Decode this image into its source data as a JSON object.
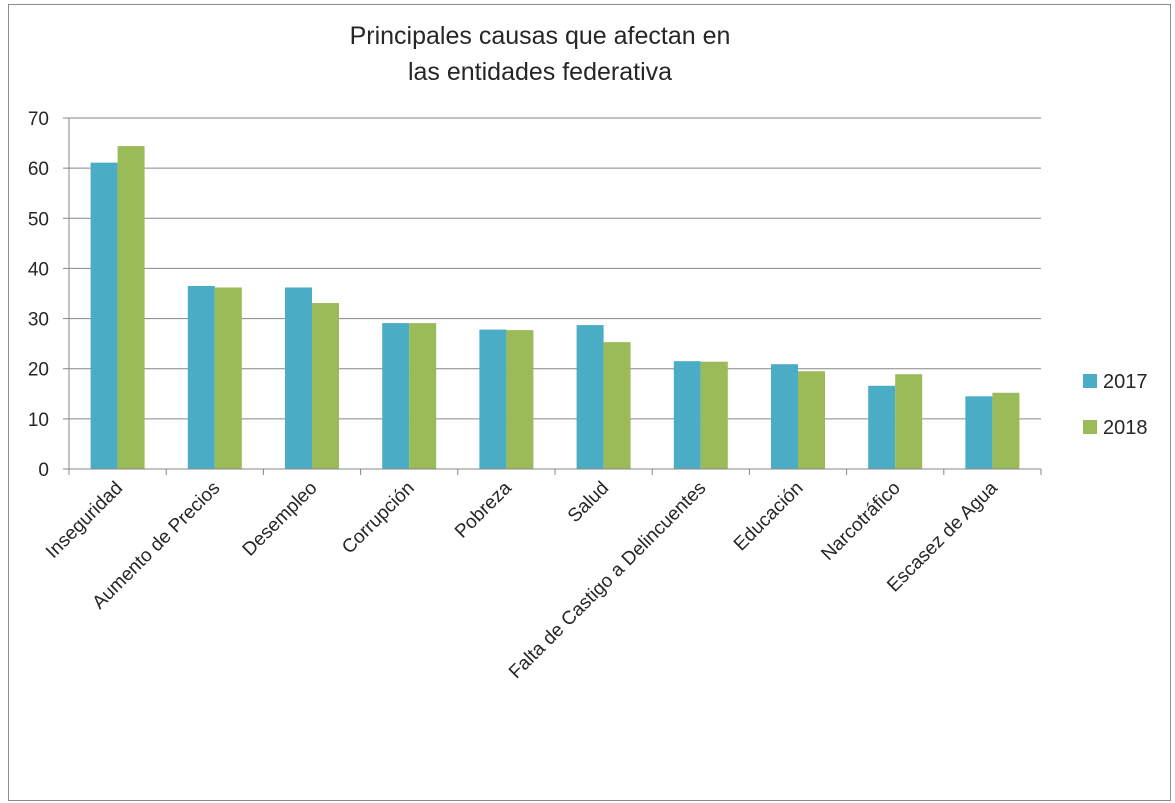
{
  "chart_data": {
    "type": "bar",
    "title_line1": "Principales causas que afectan en",
    "title_line2": "las entidades federativa",
    "xlabel": "",
    "ylabel": "",
    "ylim": [
      0,
      70
    ],
    "yticks": [
      "0",
      "10",
      "20",
      "30",
      "40",
      "50",
      "60",
      "70"
    ],
    "grid": true,
    "legend_position": "right",
    "categories": [
      "Inseguridad",
      "Aumento de Precios",
      "Desempleo",
      "Corrupción",
      "Pobreza",
      "Salud",
      "Falta de Castigo a Delincuentes",
      "Educación",
      "Narcotráfico",
      "Escasez de Agua"
    ],
    "series": [
      {
        "name": "2017",
        "color": "#4bacc6",
        "values": [
          61.1,
          36.5,
          36.2,
          29.1,
          27.8,
          28.7,
          21.5,
          20.9,
          16.6,
          14.5
        ]
      },
      {
        "name": "2018",
        "color": "#9bbb59",
        "values": [
          64.4,
          36.2,
          33.1,
          29.1,
          27.7,
          25.3,
          21.4,
          19.5,
          18.9,
          15.2
        ]
      }
    ]
  }
}
